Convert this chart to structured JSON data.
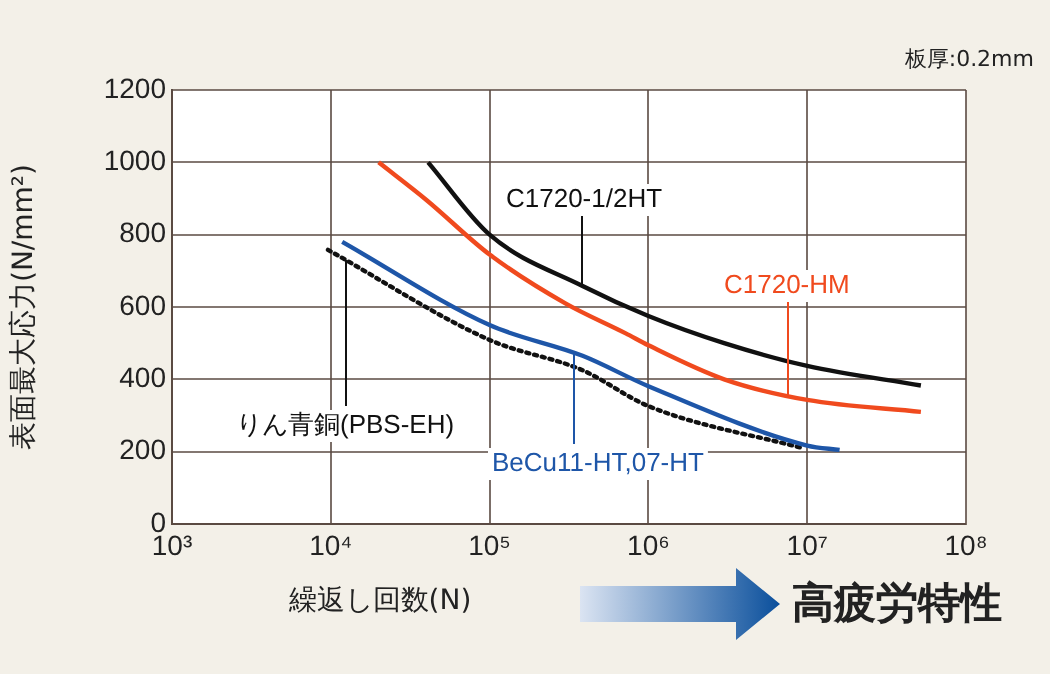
{
  "chart_data": {
    "type": "line",
    "xlabel": "繰返し回数(N)",
    "ylabel": "表面最大応力(N/mm²)",
    "log": "x",
    "xlim": [
      1000,
      100000000
    ],
    "xticks": [
      {
        "value": 1000,
        "label": "10³"
      },
      {
        "value": 10000,
        "label": "10⁴"
      },
      {
        "value": 100000,
        "label": "10⁵"
      },
      {
        "value": 1000000,
        "label": "10⁶"
      },
      {
        "value": 10000000,
        "label": "10⁷"
      },
      {
        "value": 100000000,
        "label": "10⁸"
      }
    ],
    "ylim": [
      0,
      1200
    ],
    "yticks": [
      0,
      200,
      400,
      600,
      800,
      1000,
      1200
    ],
    "grid": true,
    "legend": false,
    "marker": "none",
    "series": [
      {
        "name": "C1720-1/2HT",
        "color": "#111111",
        "line_style": "solid",
        "x": [
          41000,
          100000,
          385000,
          1000000,
          3000000,
          10000000,
          52000000
        ],
        "values": [
          1000,
          800,
          658,
          575,
          500,
          437,
          383
        ]
      },
      {
        "name": "C1720-HM",
        "color": "#f04a1e",
        "line_style": "solid",
        "x": [
          20000,
          40000,
          100000,
          300000,
          720000,
          1000000,
          3000000,
          10000000,
          52000000
        ],
        "values": [
          1000,
          896,
          745,
          610,
          527,
          494,
          400,
          343,
          310
        ]
      },
      {
        "name": "BeCu11-HT,07-HT",
        "color": "#1e56a8",
        "line_style": "solid",
        "x": [
          11800,
          100000,
          385000,
          1000000,
          10000000,
          16000000
        ],
        "values": [
          780,
          550,
          465,
          381,
          217,
          205
        ]
      },
      {
        "name": "りん青銅(PBS-EH)",
        "color": "#111111",
        "line_style": "dotted",
        "x": [
          9600,
          100000,
          385000,
          1000000,
          9300000
        ],
        "values": [
          758,
          509,
          425,
          326,
          210
        ]
      }
    ],
    "annotations": [
      "板厚:0.2mm",
      "高疲労特性"
    ]
  }
}
